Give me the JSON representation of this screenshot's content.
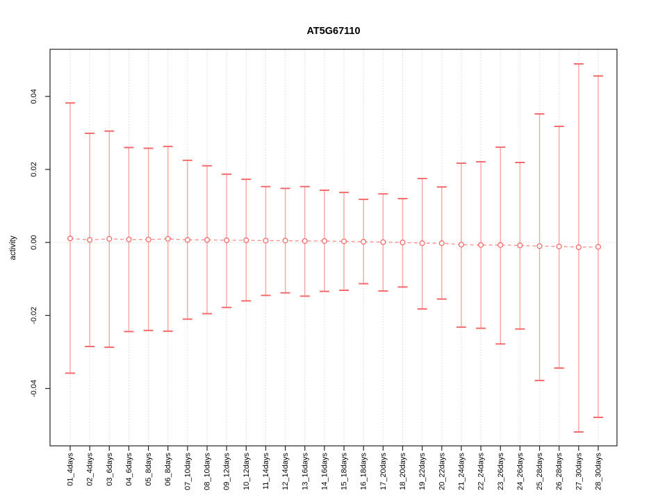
{
  "page": {
    "background": "#ffffff"
  },
  "chart_data": {
    "type": "scatter",
    "subtype": "errorbar",
    "title": "AT5G67110",
    "xlabel": "",
    "ylabel": "activity",
    "legend": "none",
    "grid": {
      "vertical_dotted_per_category": true,
      "horizontal_dotted_at_zero": true
    },
    "categories": [
      "01_4days",
      "02_4days",
      "03_6days",
      "04_6days",
      "05_8days",
      "06_8days",
      "07_10days",
      "08_10days",
      "09_12days",
      "10_12days",
      "11_14days",
      "12_14days",
      "13_16days",
      "14_16days",
      "15_18days",
      "16_18days",
      "17_20days",
      "18_20days",
      "19_22days",
      "20_22days",
      "21_24days",
      "22_24days",
      "23_26days",
      "24_26days",
      "25_28days",
      "26_28days",
      "27_30days",
      "28_30days"
    ],
    "series": [
      {
        "name": "mean",
        "marker": "open-circle",
        "line": "dashed",
        "values": [
          0.0011,
          0.0007,
          0.001,
          0.0008,
          0.0008,
          0.001,
          0.0007,
          0.0007,
          0.0006,
          0.0006,
          0.0005,
          0.0005,
          0.0004,
          0.0004,
          0.0003,
          0.0002,
          0.0001,
          0.0,
          -0.0002,
          -0.0002,
          -0.0006,
          -0.0007,
          -0.0007,
          -0.0008,
          -0.001,
          -0.0011,
          -0.0013,
          -0.0012
        ]
      },
      {
        "name": "upper",
        "values": [
          0.0382,
          0.0299,
          0.0305,
          0.026,
          0.0258,
          0.0263,
          0.0225,
          0.021,
          0.0187,
          0.0173,
          0.0153,
          0.0148,
          0.0153,
          0.0143,
          0.0137,
          0.0118,
          0.0133,
          0.012,
          0.0175,
          0.0152,
          0.0217,
          0.0221,
          0.0261,
          0.0219,
          0.0352,
          0.0318,
          0.0489,
          0.0456
        ]
      },
      {
        "name": "lower",
        "values": [
          -0.0358,
          -0.0285,
          -0.0287,
          -0.0244,
          -0.0241,
          -0.0243,
          -0.021,
          -0.0195,
          -0.0178,
          -0.016,
          -0.0145,
          -0.0138,
          -0.0147,
          -0.0134,
          -0.0131,
          -0.0113,
          -0.0133,
          -0.0122,
          -0.0182,
          -0.0155,
          -0.0232,
          -0.0235,
          -0.0278,
          -0.0237,
          -0.0378,
          -0.0344,
          -0.0519,
          -0.0479
        ]
      }
    ],
    "yticks": [
      {
        "label": "-0.04",
        "value": -0.04
      },
      {
        "label": "-0.02",
        "value": -0.02
      },
      {
        "label": "0.00",
        "value": 0.0
      },
      {
        "label": "0.02",
        "value": 0.02
      },
      {
        "label": "0.04",
        "value": 0.04
      }
    ],
    "ylim": [
      -0.0557,
      0.0529
    ],
    "colors": {
      "errorbar_cap": "#f46a6a",
      "errorbar_line": "#f8a4a4",
      "dash_line": "#f78c8c",
      "point_stroke": "#f46a6a",
      "point_fill": "#ffffff",
      "grid": "#d9d9d9",
      "axis": "#222222",
      "text": "#000000"
    }
  }
}
